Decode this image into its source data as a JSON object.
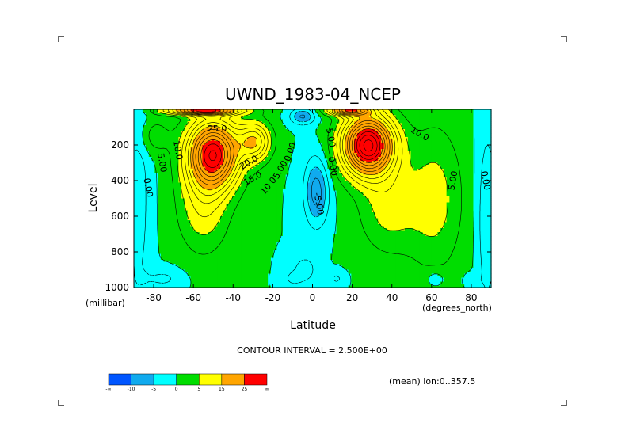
{
  "chart_data": {
    "type": "contour",
    "title": "UWND_1983-04_NCEP",
    "xlabel": "Latitude",
    "x_units": "(degrees_north)",
    "ylabel": "Level",
    "y_units": "(millibar)",
    "xlim": [
      -90,
      90
    ],
    "ylim": [
      1000,
      0
    ],
    "x_ticks": [
      -80,
      -60,
      -40,
      -20,
      0,
      20,
      40,
      60,
      80
    ],
    "x_tick_labels": [
      "-80",
      "-60",
      "-40",
      "-20",
      "0",
      "20",
      "40",
      "60",
      "80"
    ],
    "y_ticks": [
      200,
      400,
      600,
      800,
      1000
    ],
    "y_tick_labels": [
      "200",
      "400",
      "600",
      "800",
      "1000"
    ],
    "contour_interval_text": "CONTOUR INTERVAL = 2.500E+00",
    "footnote": "(mean) lon:0..357.5",
    "colorbar": {
      "colors": [
        "#0055ff",
        "#10aaee",
        "#00ffff",
        "#00dd00",
        "#ffff00",
        "#ffa500",
        "#ff0000"
      ],
      "labels": [
        "-∞",
        "-10",
        "-5",
        "0",
        "5",
        "15",
        "25",
        "∞"
      ]
    },
    "contour_labels": [
      {
        "text": "25.0",
        "lat": -48,
        "lev": 110,
        "rot": 0
      },
      {
        "text": "10.0",
        "lat": -68,
        "lev": 230,
        "rot": 80
      },
      {
        "text": "5.00",
        "lat": -76,
        "lev": 300,
        "rot": 80
      },
      {
        "text": "0.00",
        "lat": -83,
        "lev": 440,
        "rot": 80
      },
      {
        "text": "20.0",
        "lat": -32,
        "lev": 300,
        "rot": -30
      },
      {
        "text": "15.0",
        "lat": -30,
        "lev": 390,
        "rot": -30
      },
      {
        "text": "10.0",
        "lat": -22,
        "lev": 430,
        "rot": -50
      },
      {
        "text": "5.00",
        "lat": -16,
        "lev": 340,
        "rot": -60
      },
      {
        "text": "0.00",
        "lat": -11,
        "lev": 240,
        "rot": -70
      },
      {
        "text": "-5.00",
        "lat": 3,
        "lev": 530,
        "rot": 80
      },
      {
        "text": "0.00",
        "lat": 10,
        "lev": 320,
        "rot": 80
      },
      {
        "text": "5.00",
        "lat": 9,
        "lev": 160,
        "rot": 80
      },
      {
        "text": "10.0",
        "lat": 54,
        "lev": 140,
        "rot": 30
      },
      {
        "text": "5.00",
        "lat": 71,
        "lev": 400,
        "rot": -80
      },
      {
        "text": "0.00",
        "lat": 87,
        "lev": 400,
        "rot": 80
      }
    ],
    "features": [
      {
        "name": "southern-jet-max",
        "lat": -50,
        "lev": 250,
        "value": 29
      },
      {
        "name": "southern-secondary-max",
        "lat": -28,
        "lev": 180,
        "value": 27
      },
      {
        "name": "northern-jet-max",
        "lat": 28,
        "lev": 200,
        "value": 33
      },
      {
        "name": "equatorial-easterlies",
        "lat": 3,
        "lev": 450,
        "value": -7
      },
      {
        "name": "south-polar-stratosphere",
        "lat": -55,
        "lev": 10,
        "value": 30
      },
      {
        "name": "north-subtropical-stratosphere",
        "lat": 18,
        "lev": 10,
        "value": 30
      }
    ]
  }
}
